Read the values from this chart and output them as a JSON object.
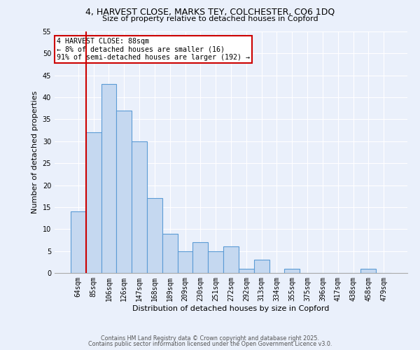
{
  "title_line1": "4, HARVEST CLOSE, MARKS TEY, COLCHESTER, CO6 1DQ",
  "title_line2": "Size of property relative to detached houses in Copford",
  "xlabel": "Distribution of detached houses by size in Copford",
  "ylabel": "Number of detached properties",
  "bar_labels": [
    "64sqm",
    "85sqm",
    "106sqm",
    "126sqm",
    "147sqm",
    "168sqm",
    "189sqm",
    "209sqm",
    "230sqm",
    "251sqm",
    "272sqm",
    "292sqm",
    "313sqm",
    "334sqm",
    "355sqm",
    "375sqm",
    "396sqm",
    "417sqm",
    "438sqm",
    "458sqm",
    "479sqm"
  ],
  "bar_values": [
    14,
    32,
    43,
    37,
    30,
    17,
    9,
    5,
    7,
    5,
    6,
    1,
    3,
    0,
    1,
    0,
    0,
    0,
    0,
    1,
    0
  ],
  "bar_color": "#c5d8f0",
  "bar_edge_color": "#5b9bd5",
  "red_line_index": 1,
  "annotation_text": "4 HARVEST CLOSE: 88sqm\n← 8% of detached houses are smaller (16)\n91% of semi-detached houses are larger (192) →",
  "annotation_box_color": "#ffffff",
  "annotation_border_color": "#cc0000",
  "ylim": [
    0,
    55
  ],
  "yticks": [
    0,
    5,
    10,
    15,
    20,
    25,
    30,
    35,
    40,
    45,
    50,
    55
  ],
  "background_color": "#eaf0fb",
  "grid_color": "#ffffff",
  "footer_line1": "Contains HM Land Registry data © Crown copyright and database right 2025.",
  "footer_line2": "Contains public sector information licensed under the Open Government Licence v3.0."
}
